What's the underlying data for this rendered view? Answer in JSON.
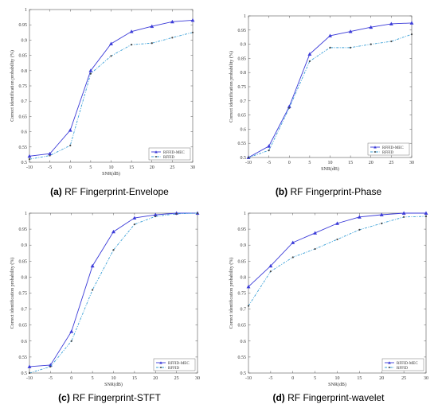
{
  "colors": {
    "series1": "#3a3ad8",
    "series2": "#3aa0d8",
    "axis": "#555555",
    "grid": "#e6e6e6"
  },
  "charts": [
    {
      "caption": {
        "letter": "(a)",
        "text": " RF Fingerprint-Envelope"
      },
      "chart_data": {
        "type": "line",
        "xlabel": "SNR(dB)",
        "ylabel": "Correct identification probability (%)",
        "x": [
          -10,
          -5,
          0,
          5,
          10,
          15,
          20,
          25,
          30
        ],
        "xlim": [
          -10,
          30
        ],
        "ylim": [
          0.5,
          1.0
        ],
        "xticks": [
          "-10",
          "-5",
          "0",
          "5",
          "10",
          "15",
          "20",
          "25",
          "30"
        ],
        "yticks": [
          "0.5",
          "0.55",
          "0.6",
          "0.65",
          "0.7",
          "0.75",
          "0.8",
          "0.85",
          "0.9",
          "0.95",
          "1"
        ],
        "legend_position": "bottom-right",
        "series": [
          {
            "name": "RFFID-MEC",
            "values": [
              0.52,
              0.528,
              0.605,
              0.8,
              0.888,
              0.928,
              0.945,
              0.96,
              0.965
            ]
          },
          {
            "name": "RFFID",
            "values": [
              0.51,
              0.522,
              0.555,
              0.79,
              0.848,
              0.885,
              0.89,
              0.908,
              0.925
            ]
          }
        ]
      }
    },
    {
      "caption": {
        "letter": "(b)",
        "text": " RF Fingerprint-Phase"
      },
      "chart_data": {
        "type": "line",
        "xlabel": "SNR(dB)",
        "ylabel": "Correct identification probability (%)",
        "x": [
          -10,
          -5,
          0,
          5,
          10,
          15,
          20,
          25,
          30
        ],
        "xlim": [
          -10,
          30
        ],
        "ylim": [
          0.5,
          1.0
        ],
        "xticks": [
          "-10",
          "-5",
          "0",
          "5",
          "10",
          "15",
          "20",
          "25",
          "30"
        ],
        "yticks": [
          "0.5",
          "0.55",
          "0.6",
          "0.65",
          "0.7",
          "0.75",
          "0.8",
          "0.85",
          "0.9",
          "0.95",
          "1"
        ],
        "legend_position": "bottom-right",
        "series": [
          {
            "name": "RFFID-MEC",
            "values": [
              0.5,
              0.54,
              0.68,
              0.865,
              0.93,
              0.945,
              0.96,
              0.972,
              0.975
            ]
          },
          {
            "name": "RFFID",
            "values": [
              0.5,
              0.525,
              0.675,
              0.84,
              0.888,
              0.888,
              0.9,
              0.91,
              0.935
            ]
          }
        ]
      }
    },
    {
      "caption": {
        "letter": "(c)",
        "text": " RF Fingerprint-STFT"
      },
      "chart_data": {
        "type": "line",
        "xlabel": "SNR(dB)",
        "ylabel": "Correct identification probability (%)",
        "x": [
          -10,
          -5,
          0,
          5,
          10,
          15,
          20,
          25,
          30
        ],
        "xlim": [
          -10,
          30
        ],
        "ylim": [
          0.5,
          1.0
        ],
        "xticks": [
          "-10",
          "-5",
          "0",
          "5",
          "10",
          "15",
          "20",
          "25",
          "30"
        ],
        "yticks": [
          "0.5",
          "0.55",
          "0.6",
          "0.65",
          "0.7",
          "0.75",
          "0.8",
          "0.85",
          "0.9",
          "0.95",
          "1"
        ],
        "legend_position": "bottom-right",
        "series": [
          {
            "name": "RFFID-MEC",
            "values": [
              0.52,
              0.525,
              0.63,
              0.835,
              0.942,
              0.985,
              0.995,
              1.0,
              1.0
            ]
          },
          {
            "name": "RFFID",
            "values": [
              0.5,
              0.52,
              0.6,
              0.76,
              0.885,
              0.965,
              0.99,
              0.998,
              1.0
            ]
          }
        ]
      }
    },
    {
      "caption": {
        "letter": "(d)",
        "text": " RF Fingerprint-wavelet"
      },
      "chart_data": {
        "type": "line",
        "xlabel": "SNR(dB)",
        "ylabel": "Correct identification probability (%)",
        "x": [
          -10,
          -5,
          0,
          5,
          10,
          15,
          20,
          25,
          30
        ],
        "xlim": [
          -10,
          30
        ],
        "ylim": [
          0.5,
          1.0
        ],
        "xticks": [
          "-10",
          "-5",
          "0",
          "5",
          "10",
          "15",
          "20",
          "25",
          "30"
        ],
        "yticks": [
          "0.5",
          "0.55",
          "0.6",
          "0.65",
          "0.7",
          "0.75",
          "0.8",
          "0.85",
          "0.9",
          "0.95",
          "1"
        ],
        "legend_position": "bottom-right",
        "series": [
          {
            "name": "RFFID-MEC",
            "values": [
              0.77,
              0.835,
              0.908,
              0.938,
              0.968,
              0.988,
              0.995,
              1.0,
              1.0
            ]
          },
          {
            "name": "RFFID",
            "values": [
              0.71,
              0.818,
              0.862,
              0.888,
              0.918,
              0.948,
              0.968,
              0.988,
              0.99
            ]
          }
        ]
      }
    }
  ]
}
